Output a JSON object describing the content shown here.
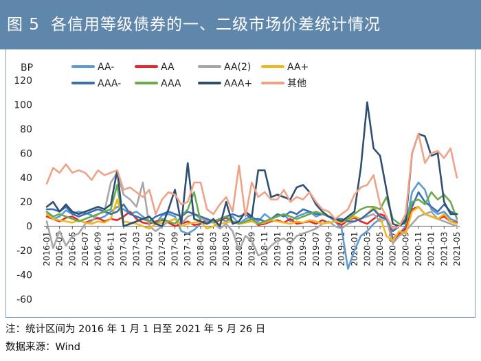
{
  "header": {
    "fig_no": "图 5",
    "title": "各信用等级债券的一、二级市场价差统计情况"
  },
  "notes": {
    "range": "注：统计区间为 2016 年 1 月 1 日至 2021 年 5 月 26 日",
    "source": "数据来源：Wind"
  },
  "colors": {
    "title_bg": "#5f86ab",
    "AA-": "#5b9bd5",
    "AA": "#e8262b",
    "AA(2)": "#a6a6a6",
    "AA+": "#f2b720",
    "AAA-": "#3a6fad",
    "AAA": "#6aab4f",
    "AAA+": "#2f4f72",
    "其他": "#f0a286"
  },
  "chart_data": {
    "type": "line",
    "ylabel": "BP",
    "ylim": [
      -60,
      120
    ],
    "yticks": [
      120,
      100,
      80,
      60,
      40,
      20,
      0,
      -20,
      -40,
      -60
    ],
    "grid": false,
    "legend_position": "top",
    "x_tick_labels": [
      "2016-01",
      "2016-03",
      "2016-05",
      "2016-07",
      "2016-09",
      "2016-11",
      "2017-01",
      "2017-03",
      "2017-05",
      "2017-07",
      "2017-09",
      "2017-11",
      "2018-01",
      "2018-03",
      "2018-05",
      "2018-07",
      "2018-09",
      "2018-11",
      "2019-01",
      "2019-03",
      "2019-05",
      "2019-07",
      "2019-09",
      "2019-11",
      "2020-01",
      "2020-03",
      "2020-05",
      "2020-07",
      "2020-09",
      "2020-11",
      "2021-01",
      "2021-03",
      "2021-05"
    ],
    "x_count": 65,
    "series": [
      {
        "name": "AA-",
        "values": [
          12,
          6,
          8,
          13,
          10,
          12,
          11,
          9,
          6,
          8,
          12,
          16,
          14,
          10,
          12,
          8,
          4,
          2,
          9,
          10,
          8,
          -4,
          -6,
          -3,
          2,
          4,
          3,
          6,
          4,
          8,
          2,
          6,
          8,
          4,
          10,
          6,
          8,
          10,
          4,
          8,
          10,
          12,
          8,
          10,
          8,
          4,
          -2,
          -35,
          -20,
          -8,
          -4,
          2,
          6,
          8,
          -10,
          -6,
          0,
          28,
          36,
          30,
          14,
          10,
          12,
          6,
          4
        ]
      },
      {
        "name": "AA",
        "values": [
          8,
          6,
          4,
          7,
          8,
          5,
          3,
          5,
          7,
          4,
          6,
          5,
          8,
          12,
          6,
          3,
          2,
          4,
          5,
          3,
          0,
          2,
          4,
          1,
          2,
          6,
          3,
          5,
          7,
          4,
          2,
          3,
          6,
          1,
          2,
          4,
          5,
          3,
          6,
          2,
          3,
          4,
          2,
          5,
          3,
          4,
          1,
          5,
          7,
          4,
          2,
          6,
          10,
          8,
          -12,
          -6,
          -2,
          14,
          16,
          10,
          8,
          6,
          8,
          4,
          3
        ]
      },
      {
        "name": "AA(2)",
        "values": [
          4,
          -18,
          -4,
          -16,
          -8,
          -6,
          2,
          4,
          10,
          12,
          36,
          44,
          26,
          22,
          16,
          36,
          0,
          -4,
          0,
          4,
          6,
          2,
          8,
          10,
          6,
          5,
          3,
          -2,
          2,
          -4,
          -20,
          -8,
          -12,
          -24,
          -22,
          -16,
          -12,
          -10,
          -14,
          -8,
          -6,
          -4,
          -2,
          2,
          4,
          0,
          -2,
          2,
          4,
          6,
          8,
          10,
          4,
          6,
          -14,
          -8,
          -4,
          2,
          8,
          10,
          12,
          6,
          4,
          2,
          0
        ]
      },
      {
        "name": "AA+",
        "values": [
          10,
          6,
          5,
          4,
          3,
          5,
          3,
          2,
          4,
          3,
          6,
          22,
          4,
          3,
          2,
          0,
          -2,
          2,
          3,
          4,
          6,
          0,
          2,
          3,
          4,
          -2,
          0,
          2,
          3,
          4,
          2,
          3,
          4,
          2,
          3,
          5,
          4,
          3,
          2,
          4,
          3,
          5,
          4,
          2,
          3,
          4,
          3,
          5,
          8,
          6,
          10,
          16,
          8,
          -8,
          -12,
          -4,
          -6,
          12,
          16,
          10,
          8,
          6,
          10,
          4,
          2
        ]
      },
      {
        "name": "AAA-",
        "values": [
          14,
          14,
          12,
          16,
          10,
          8,
          10,
          12,
          14,
          12,
          10,
          12,
          18,
          10,
          8,
          6,
          4,
          8,
          10,
          12,
          10,
          8,
          12,
          10,
          8,
          6,
          4,
          6,
          8,
          10,
          8,
          10,
          6,
          6,
          4,
          6,
          10,
          8,
          12,
          10,
          14,
          12,
          10,
          10,
          8,
          6,
          6,
          4,
          4,
          6,
          10,
          14,
          8,
          6,
          -4,
          0,
          6,
          16,
          28,
          20,
          16,
          12,
          18,
          12,
          10
        ]
      },
      {
        "name": "AAA",
        "values": [
          12,
          8,
          10,
          8,
          6,
          4,
          6,
          8,
          10,
          12,
          14,
          34,
          0,
          2,
          4,
          6,
          4,
          2,
          6,
          4,
          2,
          8,
          14,
          28,
          4,
          2,
          4,
          6,
          8,
          4,
          2,
          4,
          6,
          2,
          4,
          6,
          8,
          10,
          8,
          6,
          8,
          10,
          12,
          10,
          8,
          6,
          4,
          6,
          10,
          14,
          16,
          16,
          14,
          24,
          6,
          2,
          2,
          20,
          22,
          18,
          28,
          22,
          26,
          20,
          6
        ]
      },
      {
        "name": "AAA+",
        "values": [
          16,
          20,
          12,
          18,
          12,
          10,
          12,
          14,
          16,
          14,
          18,
          46,
          0,
          2,
          4,
          6,
          8,
          2,
          0,
          14,
          30,
          2,
          52,
          6,
          4,
          2,
          6,
          0,
          20,
          2,
          4,
          12,
          8,
          46,
          46,
          24,
          26,
          24,
          22,
          32,
          34,
          28,
          18,
          12,
          8,
          6,
          4,
          8,
          12,
          48,
          102,
          64,
          58,
          30,
          2,
          0,
          4,
          60,
          76,
          74,
          58,
          60,
          20,
          10,
          10
        ]
      },
      {
        "name": "其他",
        "values": [
          35,
          48,
          44,
          51,
          44,
          46,
          44,
          38,
          46,
          42,
          44,
          46,
          30,
          32,
          28,
          24,
          30,
          10,
          22,
          28,
          26,
          18,
          20,
          36,
          36,
          14,
          10,
          18,
          24,
          12,
          50,
          8,
          36,
          24,
          28,
          22,
          22,
          30,
          20,
          24,
          22,
          28,
          20,
          14,
          12,
          6,
          10,
          14,
          26,
          32,
          34,
          42,
          18,
          8,
          -2,
          0,
          10,
          60,
          76,
          52,
          60,
          62,
          56,
          64,
          40
        ]
      }
    ]
  }
}
